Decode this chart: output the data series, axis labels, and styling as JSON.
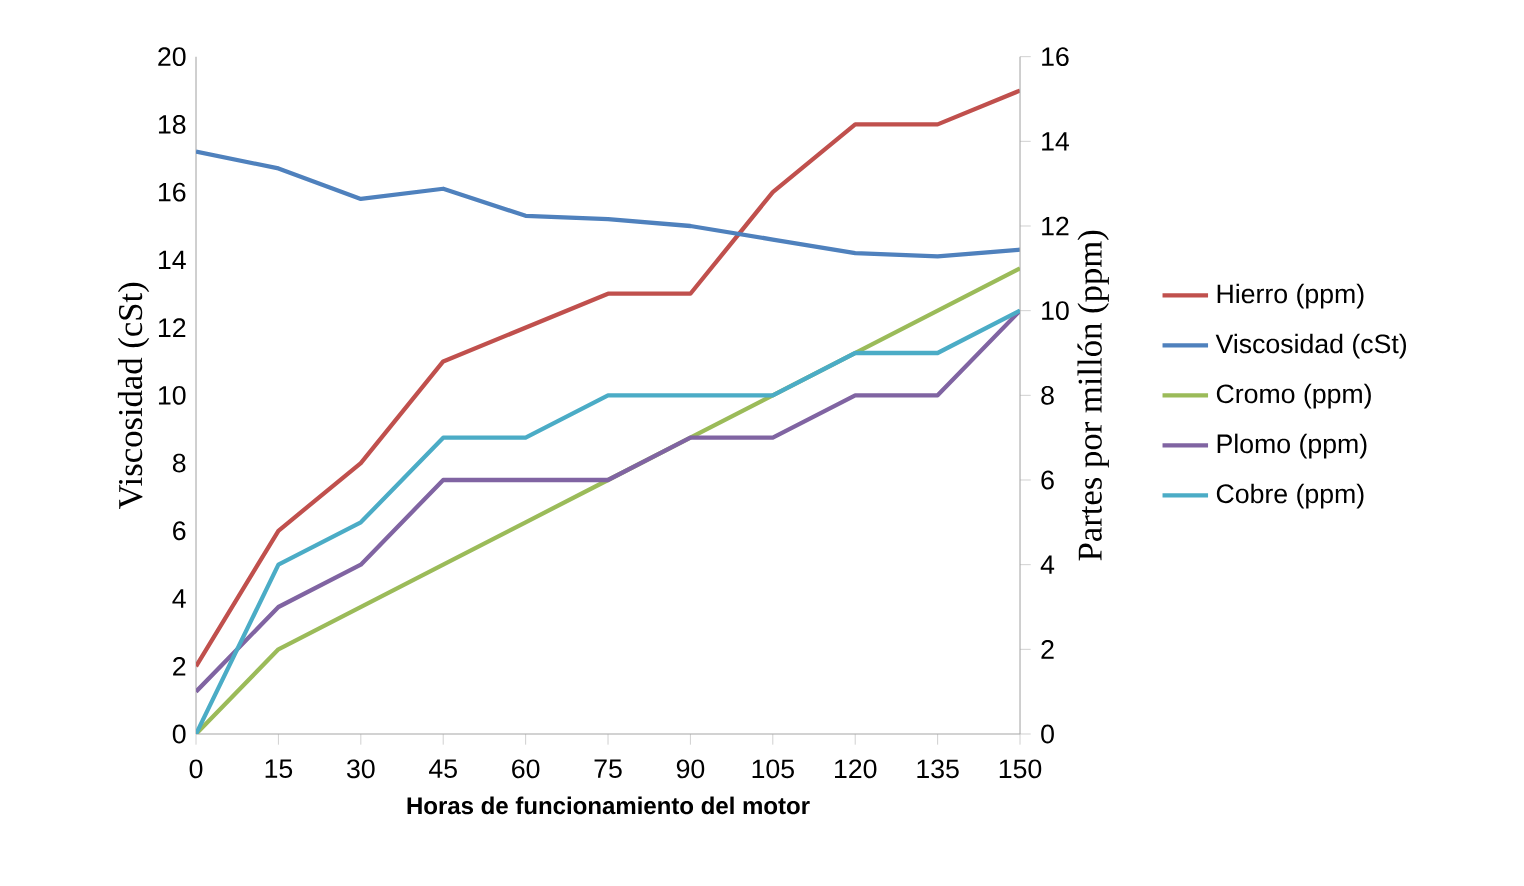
{
  "chart_data": {
    "type": "line",
    "xlabel": "Horas de funcionamiento del motor",
    "ylabel": "Viscosidad (cSt)",
    "y2label": "Partes por millón (ppm)",
    "categories": [
      "0",
      "15",
      "30",
      "45",
      "60",
      "75",
      "90",
      "105",
      "120",
      "135",
      "150"
    ],
    "series": [
      {
        "name": "Hierro (ppm)",
        "color": "#c0504d",
        "axis": "y",
        "values": [
          2,
          6,
          8,
          11,
          12,
          13,
          13,
          16,
          18,
          18,
          19
        ]
      },
      {
        "name": "Viscosidad (cSt)",
        "color": "#4f81bd",
        "axis": "y",
        "values": [
          17.2,
          16.7,
          15.8,
          16.1,
          15.3,
          15.2,
          15.0,
          14.6,
          14.2,
          14.1,
          14.3
        ]
      },
      {
        "name": "Cromo (ppm)",
        "color": "#9bbb59",
        "axis": "y2",
        "values": [
          0,
          2,
          3,
          4,
          5,
          6,
          7,
          8,
          9,
          10,
          11
        ]
      },
      {
        "name": "Plomo (ppm)",
        "color": "#8064a2",
        "axis": "y2",
        "values": [
          1,
          3,
          4,
          6,
          6,
          6,
          7,
          7,
          8,
          8,
          10
        ]
      },
      {
        "name": "Cobre (ppm)",
        "color": "#4bacc6",
        "axis": "y2",
        "values": [
          0,
          4,
          5,
          7,
          7,
          8,
          8,
          8,
          9,
          9,
          10
        ]
      }
    ],
    "ylim": [
      0,
      20
    ],
    "yticks": [
      0,
      2,
      4,
      6,
      8,
      10,
      12,
      14,
      16,
      18,
      20
    ],
    "y2lim": [
      0,
      16
    ],
    "y2ticks": [
      0,
      2,
      4,
      6,
      8,
      10,
      12,
      14,
      16
    ],
    "legend": "right",
    "grid": false,
    "marker": "none",
    "line_style": "solid"
  }
}
